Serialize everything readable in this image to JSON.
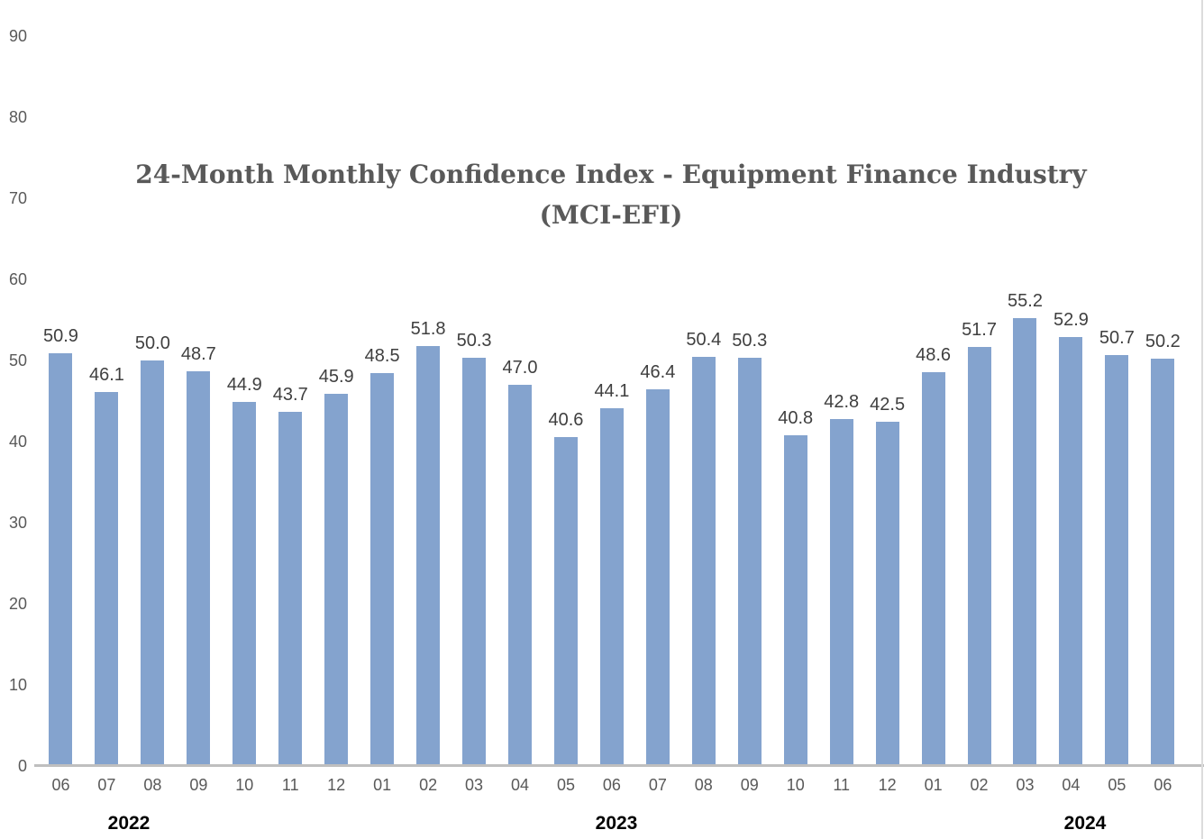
{
  "colors": {
    "bar_fill": "#84A3CE",
    "axis_line": "#BFBFBF",
    "title_text": "#595959",
    "data_label_text": "#3F3F3F",
    "tick_text": "#595959",
    "year_text": "#000000",
    "right_border": "#DCDCDC",
    "background": "#FFFFFF"
  },
  "chart_data": {
    "type": "bar",
    "title": "24-Month Monthly Confidence Index - Equipment Finance Industry",
    "title_line2": "(MCI-EFI)",
    "categories": [
      "06",
      "07",
      "08",
      "09",
      "10",
      "11",
      "12",
      "01",
      "02",
      "03",
      "04",
      "05",
      "06",
      "07",
      "08",
      "09",
      "10",
      "11",
      "12",
      "01",
      "02",
      "03",
      "04",
      "05",
      "06"
    ],
    "values": [
      50.9,
      46.1,
      50.0,
      48.7,
      44.9,
      43.7,
      45.9,
      48.5,
      51.8,
      50.3,
      47.0,
      40.6,
      44.1,
      46.4,
      50.4,
      50.3,
      40.8,
      42.8,
      42.5,
      48.6,
      51.7,
      55.2,
      52.9,
      50.7,
      50.2
    ],
    "data_labels": [
      "50.9",
      "46.1",
      "50.0",
      "48.7",
      "44.9",
      "43.7",
      "45.9",
      "48.5",
      "51.8",
      "50.3",
      "47.0",
      "40.6",
      "44.1",
      "46.4",
      "50.4",
      "50.3",
      "40.8",
      "42.8",
      "42.5",
      "48.6",
      "51.7",
      "55.2",
      "52.9",
      "50.7",
      "50.2"
    ],
    "year_groups": [
      {
        "label": "2022",
        "month_count": 7
      },
      {
        "label": "2023",
        "month_count": 12
      },
      {
        "label": "2024",
        "month_count": 6
      }
    ],
    "y_axis": {
      "min": 0,
      "max": 90,
      "step": 10,
      "tick_labels": [
        "0",
        "10",
        "20",
        "30",
        "40",
        "50",
        "60",
        "70",
        "80",
        "90"
      ]
    },
    "grid": "off",
    "legend": "none",
    "series_name": "MCI-EFI",
    "xlabel": "",
    "ylabel": ""
  }
}
